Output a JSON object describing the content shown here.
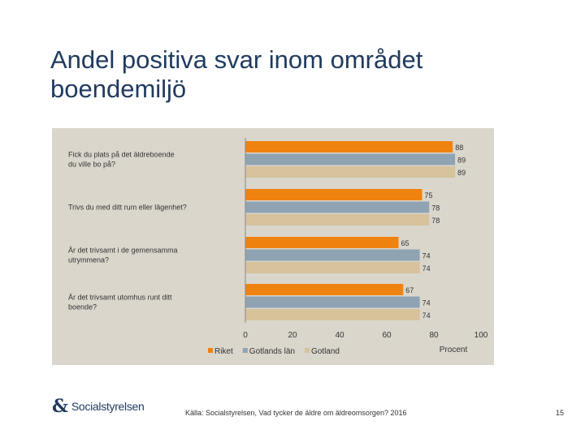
{
  "slide": {
    "title": "Andel positiva svar inom området\nboendemiljö",
    "source": "Källa: Socialstyrelsen, Vad tycker de äldre om äldreomsorgen? 2016",
    "page_number": "15",
    "logo_text": "Socialstyrelsen"
  },
  "chart_data": {
    "type": "bar",
    "orientation": "horizontal",
    "categories": [
      "Fick du plats på det äldreboende\ndu ville bo på?",
      "Trivs du med ditt rum eller lägenhet?",
      "Är det trivsamt i de gemensamma\nutrymmena?",
      "Är det trivsamt utomhus runt ditt\nboende?"
    ],
    "series": [
      {
        "name": "Riket",
        "color": "#f0820f",
        "values": [
          88,
          75,
          65,
          67
        ]
      },
      {
        "name": "Gotlands län",
        "color": "#8fa3b3",
        "values": [
          89,
          78,
          74,
          74
        ]
      },
      {
        "name": "Gotland",
        "color": "#d6c29b",
        "values": [
          89,
          78,
          74,
          74
        ]
      }
    ],
    "xlim": [
      0,
      100
    ],
    "xticks": [
      "0",
      "20",
      "40",
      "60",
      "80",
      "100"
    ],
    "xlabel": "Procent",
    "legend_position": "bottom",
    "grid": false
  }
}
